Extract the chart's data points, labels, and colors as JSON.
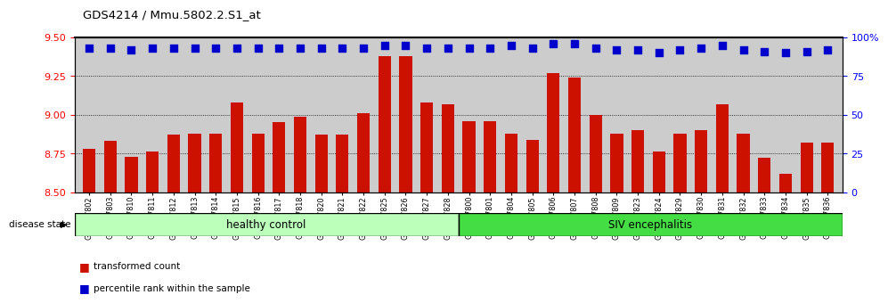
{
  "title": "GDS4214 / Mmu.5802.2.S1_at",
  "samples": [
    "GSM347802",
    "GSM347803",
    "GSM347810",
    "GSM347811",
    "GSM347812",
    "GSM347813",
    "GSM347814",
    "GSM347815",
    "GSM347816",
    "GSM347817",
    "GSM347818",
    "GSM347820",
    "GSM347821",
    "GSM347822",
    "GSM347825",
    "GSM347826",
    "GSM347827",
    "GSM347828",
    "GSM347800",
    "GSM347801",
    "GSM347804",
    "GSM347805",
    "GSM347806",
    "GSM347807",
    "GSM347808",
    "GSM347809",
    "GSM347823",
    "GSM347824",
    "GSM347829",
    "GSM347830",
    "GSM347831",
    "GSM347832",
    "GSM347833",
    "GSM347834",
    "GSM347835",
    "GSM347836"
  ],
  "bar_values": [
    8.78,
    8.83,
    8.73,
    8.76,
    8.87,
    8.88,
    8.88,
    9.08,
    8.88,
    8.95,
    8.99,
    8.87,
    8.87,
    9.01,
    9.38,
    9.38,
    9.08,
    9.07,
    8.96,
    8.96,
    8.88,
    8.84,
    9.27,
    9.24,
    9.0,
    8.88,
    8.9,
    8.76,
    8.88,
    8.9,
    9.07,
    8.88,
    8.72,
    8.62,
    8.82,
    8.82
  ],
  "percentile_values": [
    93,
    93,
    92,
    93,
    93,
    93,
    93,
    93,
    93,
    93,
    93,
    93,
    93,
    93,
    95,
    95,
    93,
    93,
    93,
    93,
    95,
    93,
    96,
    96,
    93,
    92,
    92,
    90,
    92,
    93,
    95,
    92,
    91,
    90,
    91,
    92
  ],
  "healthy_count": 18,
  "siv_count": 18,
  "ylim_left": [
    8.5,
    9.5
  ],
  "ylim_right": [
    0,
    100
  ],
  "yticks_left": [
    8.5,
    8.75,
    9.0,
    9.25,
    9.5
  ],
  "yticks_right": [
    0,
    25,
    50,
    75,
    100
  ],
  "bar_color": "#cc1100",
  "percentile_color": "#0000cc",
  "healthy_color": "#bbffbb",
  "siv_color": "#44dd44",
  "bg_color": "#cccccc",
  "legend_red_label": "transformed count",
  "legend_blue_label": "percentile rank within the sample",
  "label_healthy": "healthy control",
  "label_siv": "SIV encephalitis",
  "disease_state_label": "disease state"
}
